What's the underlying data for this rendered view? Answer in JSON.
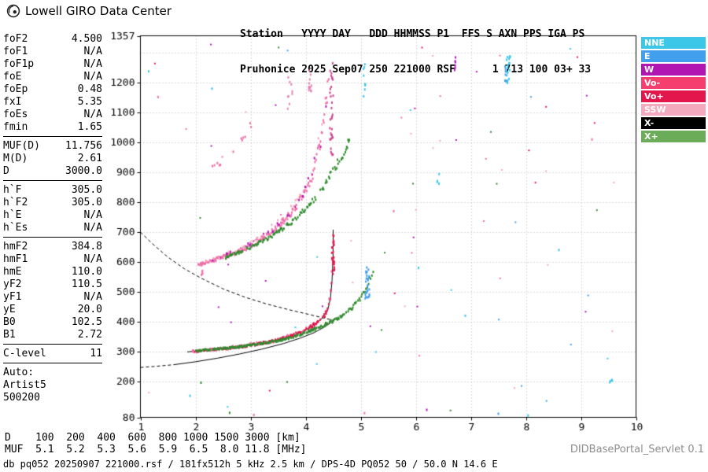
{
  "header": {
    "brand": "Lowell GIRO Data Center",
    "line1": "Station   YYYY DAY   DDD HHMMSS P1  FFS S AXN PPS IGA PS",
    "line2": "Pruhonice 2025 Sep07 250 221000 RSF      1 713 100 03+ 33"
  },
  "params": {
    "groups": [
      {
        "divider": true,
        "rows": [
          {
            "label": "foF2",
            "value": "4.500"
          },
          {
            "label": "foF1",
            "value": "N/A"
          },
          {
            "label": "foF1p",
            "value": "N/A"
          },
          {
            "label": "foE",
            "value": "N/A"
          },
          {
            "label": "foEp",
            "value": "0.48"
          },
          {
            "label": "fxI",
            "value": "5.35"
          },
          {
            "label": "foEs",
            "value": "N/A"
          },
          {
            "label": "fmin",
            "value": "1.65"
          }
        ]
      },
      {
        "divider": true,
        "rows": [
          {
            "label": "MUF(D)",
            "value": "11.756"
          },
          {
            "label": "M(D)",
            "value": "2.61"
          },
          {
            "label": "D",
            "value": "3000.0"
          }
        ]
      },
      {
        "divider": true,
        "rows": [
          {
            "label": "h`F",
            "value": "305.0"
          },
          {
            "label": "h`F2",
            "value": "305.0"
          },
          {
            "label": "h`E",
            "value": "N/A"
          },
          {
            "label": "h`Es",
            "value": "N/A"
          }
        ]
      },
      {
        "divider": true,
        "rows": [
          {
            "label": "hmF2",
            "value": "384.8"
          },
          {
            "label": "hmF1",
            "value": "N/A"
          },
          {
            "label": "hmE",
            "value": "110.0"
          },
          {
            "label": "yF2",
            "value": "110.5"
          },
          {
            "label": "yF1",
            "value": "N/A"
          },
          {
            "label": "yE",
            "value": "20.0"
          },
          {
            "label": "B0",
            "value": "102.5"
          },
          {
            "label": "B1",
            "value": "2.72"
          }
        ]
      },
      {
        "divider": true,
        "rows": [
          {
            "label": "C-level",
            "value": "11"
          }
        ]
      },
      {
        "divider": false,
        "rows": [
          {
            "label": "Auto:",
            "value": ""
          },
          {
            "label": "Artist5",
            "value": ""
          },
          {
            "label": "500200",
            "value": ""
          }
        ]
      }
    ]
  },
  "legend": {
    "items": [
      {
        "label": "NNE",
        "color": "#3cc6e8"
      },
      {
        "label": "E",
        "color": "#429fee"
      },
      {
        "label": "W",
        "color": "#b216b2"
      },
      {
        "label": "Vo-",
        "color": "#f43f6f"
      },
      {
        "label": "Vo+",
        "color": "#e3174c"
      },
      {
        "label": "SSW",
        "color": "#f4a9bd"
      },
      {
        "label": "X-",
        "color": "#000000"
      },
      {
        "label": "X+",
        "color": "#6bac58"
      }
    ]
  },
  "footer": {
    "d_line": "D    100  200  400  600  800 1000 1500 3000 [km]",
    "muf_line": "MUF  5.1  5.2  5.3  5.6  5.9  6.5  8.0 11.8 [MHz]",
    "servlet": "DIDBasePortal_Servlet 0.1",
    "status": "db pq052 20250907 221000.rsf / 181fx512h 5 kHz 2.5 km / DPS-4D PQ052 50 / 50.0 N 14.6 E"
  },
  "chart_data": {
    "type": "scatter",
    "title": "Pruhonice ionogram 2025 Sep07 221000",
    "x_unit": "MHz",
    "y_unit": "km",
    "xlim": [
      1,
      10
    ],
    "ylim": [
      80,
      1357
    ],
    "x_ticks": [
      1,
      2,
      3,
      4,
      5,
      6,
      7,
      8,
      9,
      10
    ],
    "y_ticks": [
      80,
      200,
      300,
      400,
      500,
      600,
      700,
      800,
      900,
      1000,
      1100,
      1200,
      1357
    ],
    "grid_x": [
      2,
      3,
      4,
      5,
      6,
      7,
      8,
      9
    ],
    "grid_y": [
      200,
      300,
      400,
      500,
      600,
      700,
      800,
      900,
      1000,
      1100,
      1200,
      1300
    ],
    "traces": [
      {
        "name": "o-trace-1st-hop",
        "color": "#e3174c",
        "step": 0.012,
        "dropout": 0.2,
        "points": [
          [
            1.95,
            300,
            6
          ],
          [
            2.2,
            305,
            6
          ],
          [
            2.6,
            311,
            6
          ],
          [
            3.0,
            321,
            7
          ],
          [
            3.4,
            335,
            8
          ],
          [
            3.7,
            351,
            9
          ],
          [
            3.95,
            367,
            10
          ],
          [
            4.15,
            389,
            12
          ],
          [
            4.3,
            411,
            14
          ],
          [
            4.4,
            438,
            18
          ],
          [
            4.45,
            478,
            26
          ],
          [
            4.48,
            538,
            40
          ],
          [
            4.5,
            640,
            80
          ]
        ]
      },
      {
        "name": "o-trace-1st-hop-pink",
        "color": "#ee6fa8",
        "step": 0.014,
        "dropout": 0.85,
        "points": [
          [
            1.95,
            302,
            10
          ],
          [
            2.6,
            312,
            10
          ],
          [
            3.4,
            336,
            12
          ],
          [
            3.95,
            368,
            14
          ],
          [
            4.3,
            412,
            20
          ],
          [
            4.45,
            480,
            40
          ],
          [
            4.5,
            640,
            90
          ]
        ]
      },
      {
        "name": "x-trace-1st-hop",
        "color": "#2f8b2f",
        "step": 0.012,
        "dropout": 0.25,
        "points": [
          [
            2.0,
            303,
            5
          ],
          [
            2.4,
            309,
            5
          ],
          [
            2.8,
            316,
            5
          ],
          [
            3.2,
            327,
            6
          ],
          [
            3.6,
            341,
            7
          ],
          [
            3.9,
            356,
            8
          ],
          [
            4.15,
            374,
            9
          ],
          [
            4.4,
            394,
            10
          ],
          [
            4.6,
            413,
            11
          ],
          [
            4.8,
            438,
            13
          ],
          [
            4.95,
            467,
            16
          ],
          [
            5.08,
            505,
            22
          ],
          [
            5.18,
            550,
            30
          ],
          [
            5.24,
            580,
            24
          ]
        ]
      },
      {
        "name": "o-trace-2nd-hop",
        "color": "#ee6fa8",
        "step": 0.01,
        "dropout": 0.3,
        "points": [
          [
            2.05,
            592,
            10
          ],
          [
            2.3,
            604,
            12
          ],
          [
            2.6,
            622,
            14
          ],
          [
            2.9,
            645,
            16
          ],
          [
            3.15,
            672,
            18
          ],
          [
            3.4,
            702,
            20
          ],
          [
            3.6,
            736,
            24
          ],
          [
            3.8,
            778,
            28
          ],
          [
            3.95,
            820,
            32
          ],
          [
            4.1,
            878,
            38
          ],
          [
            4.2,
            940,
            46
          ],
          [
            4.3,
            1030,
            60
          ],
          [
            4.38,
            1140,
            80
          ],
          [
            4.44,
            1240,
            70
          ]
        ]
      },
      {
        "name": "o-trace-2nd-hop-magenta",
        "color": "#b216b2",
        "step": 0.014,
        "dropout": 0.8,
        "points": [
          [
            2.2,
            602,
            14
          ],
          [
            2.9,
            647,
            18
          ],
          [
            3.4,
            704,
            24
          ],
          [
            3.8,
            780,
            30
          ],
          [
            4.1,
            880,
            42
          ],
          [
            4.3,
            1035,
            66
          ],
          [
            4.42,
            1200,
            80
          ]
        ]
      },
      {
        "name": "o-trace-2nd-hop-lightpink",
        "color": "#f4a9bd",
        "step": 0.016,
        "dropout": 0.85,
        "points": [
          [
            2.2,
            600,
            20
          ],
          [
            3.0,
            655,
            26
          ],
          [
            3.6,
            740,
            34
          ],
          [
            4.0,
            850,
            48
          ],
          [
            4.3,
            1030,
            80
          ]
        ]
      },
      {
        "name": "x-trace-2nd-hop",
        "color": "#2f8b2f",
        "step": 0.012,
        "dropout": 0.35,
        "points": [
          [
            2.55,
            615,
            8
          ],
          [
            2.9,
            640,
            10
          ],
          [
            3.2,
            668,
            12
          ],
          [
            3.5,
            700,
            14
          ],
          [
            3.8,
            742,
            16
          ],
          [
            4.05,
            788,
            18
          ],
          [
            4.3,
            845,
            22
          ],
          [
            4.5,
            905,
            26
          ],
          [
            4.68,
            965,
            30
          ],
          [
            4.85,
            1025,
            32
          ]
        ]
      },
      {
        "name": "o-trace-3rd-hop-sparse",
        "color": "#ee6fa8",
        "step": 0.018,
        "dropout": 0.85,
        "points": [
          [
            2.2,
            900,
            16
          ],
          [
            2.5,
            940,
            18
          ],
          [
            2.8,
            1000,
            22
          ],
          [
            3.0,
            1055,
            26
          ],
          [
            3.15,
            1105,
            28
          ]
        ]
      }
    ],
    "clusters": [
      {
        "name": "o-asymptote-spread",
        "f": 4.5,
        "fj": 0.05,
        "h1": 560,
        "h2": 708,
        "n": 26,
        "color": "#e3174c"
      },
      {
        "name": "2f-spread-column",
        "f": 4.47,
        "fj": 0.06,
        "h1": 950,
        "h2": 1270,
        "n": 34,
        "color": "#cc4790"
      },
      {
        "name": "2f-spread-pink-a",
        "f": 4.08,
        "fj": 0.06,
        "h1": 1150,
        "h2": 1272,
        "n": 12,
        "color": "#e584b4"
      },
      {
        "name": "2f-spread-pink-b",
        "f": 3.72,
        "fj": 0.09,
        "h1": 1100,
        "h2": 1235,
        "n": 9,
        "color": "#e584b4"
      },
      {
        "name": "x-asymptote-blue",
        "f": 5.12,
        "fj": 0.09,
        "h1": 478,
        "h2": 585,
        "n": 26,
        "color": "#429fee"
      },
      {
        "name": "cyan-column-5mhz",
        "f": 5.06,
        "fj": 0.05,
        "h1": 1150,
        "h2": 1268,
        "n": 9,
        "color": "#3cc6e8"
      },
      {
        "name": "cyan-column-7_7mhz",
        "f": 7.68,
        "fj": 0.07,
        "h1": 1190,
        "h2": 1292,
        "n": 20,
        "color": "#3cc6e8"
      },
      {
        "name": "blue-column-7_6mhz",
        "f": 7.63,
        "fj": 0.03,
        "h1": 1205,
        "h2": 1262,
        "n": 7,
        "color": "#429fee"
      },
      {
        "name": "magenta-top-6_7mhz",
        "f": 6.72,
        "fj": 0.03,
        "h1": 1242,
        "h2": 1285,
        "n": 6,
        "color": "#b216b2"
      },
      {
        "name": "cyan-dash-6_4mhz",
        "f": 6.4,
        "fj": 0.05,
        "h1": 862,
        "h2": 895,
        "n": 5,
        "color": "#3cc6e8"
      },
      {
        "name": "cyan-dash-9_5mhz",
        "f": 9.55,
        "fj": 0.06,
        "h1": 196,
        "h2": 214,
        "n": 4,
        "color": "#3cc6e8"
      },
      {
        "name": "2f-onset-pink",
        "f": 2.12,
        "fj": 0.05,
        "h1": 556,
        "h2": 600,
        "n": 8,
        "color": "#ee6fa8"
      }
    ],
    "dots": [
      [
        2.62,
        95,
        "#2f8b2f"
      ],
      [
        3.06,
        88,
        "#ee6fa8"
      ],
      [
        5.07,
        94,
        "#ee6fa8"
      ],
      [
        7.5,
        92,
        "#429fee"
      ],
      [
        8.04,
        86,
        "#3cc6e8"
      ],
      [
        6.2,
        105,
        "#b216b2"
      ],
      [
        1.32,
        1152,
        "#ee6fa8"
      ],
      [
        1.15,
        1238,
        "#3cc6e8"
      ],
      [
        2.3,
        1180,
        "#3cc6e8"
      ],
      [
        8.6,
        640,
        "#3cc6e8"
      ],
      [
        9.2,
        1010,
        "#ee6fa8"
      ],
      [
        6.9,
        420,
        "#3cc6e8"
      ],
      [
        5.6,
        770,
        "#ee6fa8"
      ],
      [
        6.05,
        580,
        "#3cc6e8"
      ],
      [
        2.1,
        196,
        "#2f8b2f"
      ],
      [
        1.9,
        152,
        "#3cc6e8"
      ]
    ],
    "noise": {
      "count": 80,
      "seed": 7,
      "colors": [
        "#3cc6e8",
        "#429fee",
        "#ee6fa8",
        "#b216b2",
        "#2f8b2f",
        "#e3174c",
        "#f4a9bd"
      ]
    },
    "lines": [
      {
        "name": "transmission-curve",
        "style": "dashed",
        "color": "#000000",
        "points": [
          [
            1.0,
            700
          ],
          [
            1.2,
            664
          ],
          [
            1.5,
            616
          ],
          [
            1.8,
            577
          ],
          [
            2.1,
            546
          ],
          [
            2.5,
            510
          ],
          [
            2.9,
            482
          ],
          [
            3.3,
            459
          ],
          [
            3.7,
            440
          ],
          [
            4.0,
            427
          ],
          [
            4.25,
            416
          ],
          [
            4.5,
            405
          ]
        ]
      },
      {
        "name": "o-trace-fit",
        "style": "solid",
        "color": "#000000",
        "points": [
          [
            1.85,
            299
          ],
          [
            2.2,
            305
          ],
          [
            2.6,
            311
          ],
          [
            3.0,
            321
          ],
          [
            3.4,
            335
          ],
          [
            3.7,
            351
          ],
          [
            3.95,
            367
          ],
          [
            4.15,
            389
          ],
          [
            4.3,
            411
          ],
          [
            4.4,
            438
          ],
          [
            4.45,
            478
          ],
          [
            4.48,
            538
          ],
          [
            4.5,
            628
          ],
          [
            4.5,
            708
          ]
        ]
      },
      {
        "name": "profile-extrapolated",
        "style": "dashed",
        "color": "#000000",
        "points": [
          [
            1.0,
            247
          ],
          [
            1.3,
            251
          ],
          [
            1.6,
            256
          ]
        ]
      },
      {
        "name": "true-height-profile",
        "style": "solid",
        "color": "#000000",
        "points": [
          [
            1.6,
            256
          ],
          [
            2.0,
            266
          ],
          [
            2.4,
            278
          ],
          [
            2.8,
            292
          ],
          [
            3.2,
            308
          ],
          [
            3.6,
            327
          ],
          [
            3.9,
            345
          ],
          [
            4.15,
            363
          ],
          [
            4.35,
            383
          ],
          [
            4.45,
            396
          ],
          [
            4.5,
            405
          ],
          [
            4.53,
            412
          ]
        ]
      }
    ]
  }
}
